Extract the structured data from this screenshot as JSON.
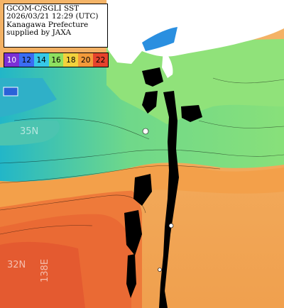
{
  "caption": {
    "line1": "GCOM-C/SGLI SST",
    "line2": "2026/03/21 12:29 (UTC)",
    "line3": "Kanagawa Prefecture",
    "line4": "supplied by JAXA"
  },
  "legend": {
    "items": [
      {
        "label": "10",
        "color": "#7b2fd6"
      },
      {
        "label": "12",
        "color": "#3b6cf2"
      },
      {
        "label": "14",
        "color": "#36c8e8"
      },
      {
        "label": "16",
        "color": "#8ee060"
      },
      {
        "label": "18",
        "color": "#f2d23c"
      },
      {
        "label": "20",
        "color": "#f39a3a"
      },
      {
        "label": "22",
        "color": "#e6432c"
      }
    ]
  },
  "grid_labels": {
    "lat_upper": "35N",
    "lat_lower": "32N",
    "lon": "138E"
  },
  "colors": {
    "land": "#ffffff",
    "cloud": "#000000",
    "cold_water": "#3fa8e8",
    "cool_water": "#76d89a",
    "warm_water": "#f2a856",
    "hot_water": "#ee7a3a"
  }
}
